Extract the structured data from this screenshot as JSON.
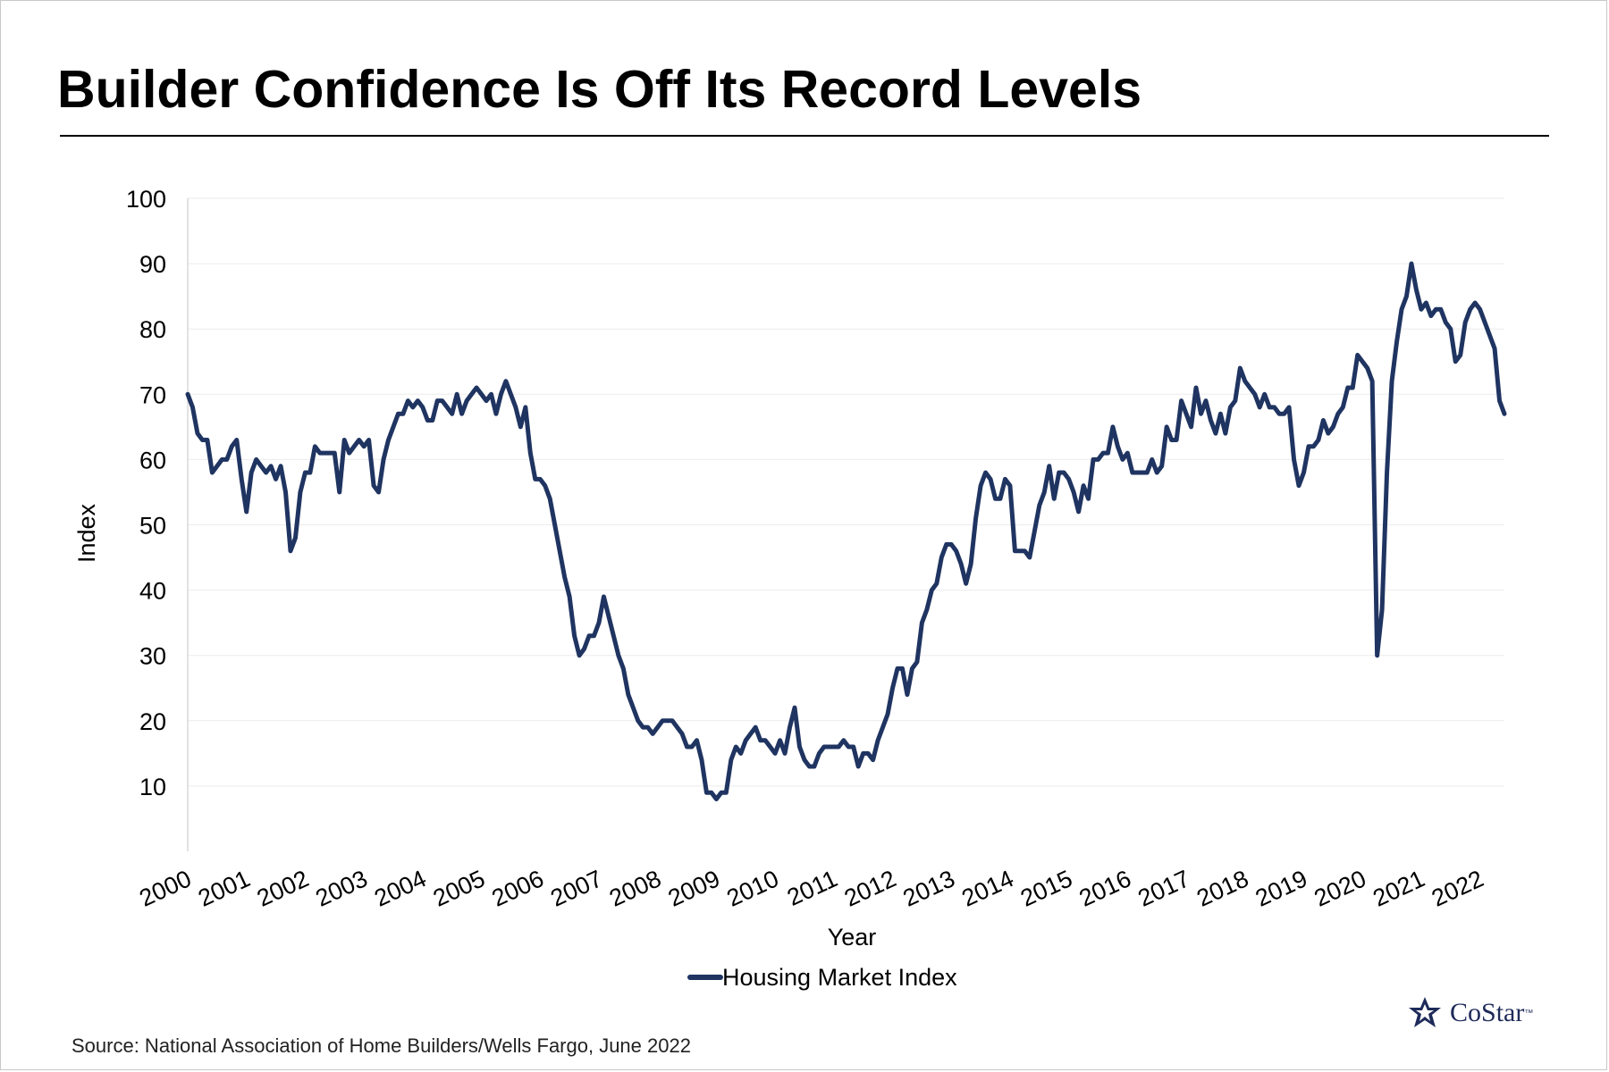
{
  "page": {
    "title": "Builder Confidence Is Off Its Record Levels",
    "source": "Source: National Association of Home Builders/Wells Fargo, June 2022",
    "logo_text": "CoStar",
    "logo_tm": "™",
    "logo_icon": "costar-star-icon",
    "colors": {
      "line": "#1f3461",
      "grid": "#ebebeb",
      "logo": "#1e2b5a"
    }
  },
  "chart_data": {
    "type": "line",
    "title": "Builder Confidence Is Off Its Record Levels",
    "xlabel": "Year",
    "ylabel": "Index",
    "x_start": 2000,
    "x_end": 2022.4167,
    "x_ticks": [
      "2000",
      "2001",
      "2002",
      "2003",
      "2004",
      "2005",
      "2006",
      "2007",
      "2008",
      "2009",
      "2010",
      "2011",
      "2012",
      "2013",
      "2014",
      "2015",
      "2016",
      "2017",
      "2018",
      "2019",
      "2020",
      "2021",
      "2022"
    ],
    "y_ticks": [
      10,
      20,
      30,
      40,
      50,
      60,
      70,
      80,
      90,
      100
    ],
    "ylim": [
      0,
      100
    ],
    "grid": true,
    "legend": "bottom-center",
    "series": [
      {
        "name": "Housing Market Index",
        "color": "#1f3461",
        "values": [
          70,
          68,
          64,
          63,
          63,
          58,
          59,
          60,
          60,
          62,
          63,
          57,
          52,
          58,
          60,
          59,
          58,
          59,
          57,
          59,
          55,
          46,
          48,
          55,
          58,
          58,
          62,
          61,
          61,
          61,
          61,
          55,
          63,
          61,
          62,
          63,
          62,
          63,
          56,
          55,
          60,
          63,
          65,
          67,
          67,
          69,
          68,
          69,
          68,
          66,
          66,
          69,
          69,
          68,
          67,
          70,
          67,
          69,
          70,
          71,
          70,
          69,
          70,
          67,
          70,
          72,
          70,
          68,
          65,
          68,
          61,
          57,
          57,
          56,
          54,
          50,
          46,
          42,
          39,
          33,
          30,
          31,
          33,
          33,
          35,
          39,
          36,
          33,
          30,
          28,
          24,
          22,
          20,
          19,
          19,
          18,
          19,
          20,
          20,
          20,
          19,
          18,
          16,
          16,
          17,
          14,
          9,
          9,
          8,
          9,
          9,
          14,
          16,
          15,
          17,
          18,
          19,
          17,
          17,
          16,
          15,
          17,
          15,
          19,
          22,
          16,
          14,
          13,
          13,
          15,
          16,
          16,
          16,
          16,
          17,
          16,
          16,
          13,
          15,
          15,
          14,
          17,
          19,
          21,
          25,
          28,
          28,
          24,
          28,
          29,
          35,
          37,
          40,
          41,
          45,
          47,
          47,
          46,
          44,
          41,
          44,
          51,
          56,
          58,
          57,
          54,
          54,
          57,
          56,
          46,
          46,
          46,
          45,
          49,
          53,
          55,
          59,
          54,
          58,
          58,
          57,
          55,
          52,
          56,
          54,
          60,
          60,
          61,
          61,
          65,
          62,
          60,
          61,
          58,
          58,
          58,
          58,
          60,
          58,
          59,
          65,
          63,
          63,
          69,
          67,
          65,
          71,
          67,
          69,
          66,
          64,
          67,
          64,
          68,
          69,
          74,
          72,
          71,
          70,
          68,
          70,
          68,
          68,
          67,
          67,
          68,
          60,
          56,
          58,
          62,
          62,
          63,
          66,
          64,
          65,
          67,
          68,
          71,
          71,
          76,
          75,
          74,
          72,
          30,
          37,
          58,
          72,
          78,
          83,
          85,
          90,
          86,
          83,
          84,
          82,
          83,
          83,
          81,
          80,
          75,
          76,
          81,
          83,
          84,
          83,
          81,
          79,
          77,
          69,
          67
        ]
      }
    ]
  }
}
